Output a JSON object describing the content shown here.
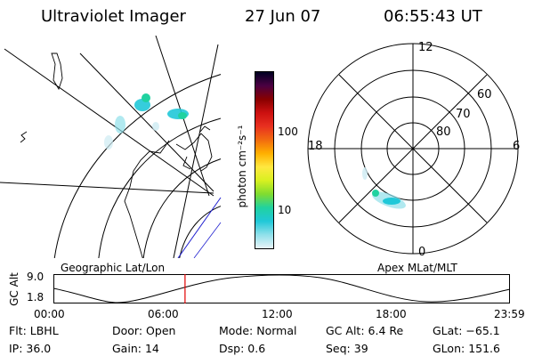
{
  "header": {
    "title": "Ultraviolet Imager",
    "date": "27 Jun 07",
    "time": "06:55:43 UT"
  },
  "colorbar": {
    "unit_label": "photon cm⁻²s⁻¹",
    "ticks": [
      "100",
      "10"
    ],
    "colors": [
      "#000022",
      "#4a0042",
      "#880000",
      "#cc1010",
      "#e83020",
      "#f26b10",
      "#ffb000",
      "#ffe840",
      "#d8f020",
      "#80dc30",
      "#20d2a0",
      "#20c8d8",
      "#90e0ea",
      "#e8f4f8"
    ]
  },
  "polar": {
    "mlt_labels": {
      "top": "12",
      "left": "18",
      "right": "6",
      "bottom": "0"
    },
    "lat_labels": [
      "60",
      "70",
      "80"
    ]
  },
  "timeline": {
    "left_title": "Geographic Lat/Lon",
    "right_title": "Apex MLat/MLT",
    "y_axis_label": "GC Alt",
    "y_ticks": [
      "9.0",
      "1.8"
    ],
    "x_ticks": [
      "00:00",
      "06:00",
      "12:00",
      "18:00",
      "23:59"
    ],
    "marker_time": "06:55:43"
  },
  "info": {
    "row1": [
      {
        "label": "Flt:",
        "value": "LBHL"
      },
      {
        "label": "Door:",
        "value": "Open"
      },
      {
        "label": "Mode:",
        "value": "Normal"
      },
      {
        "label": "GC Alt:",
        "value": "6.4 Re"
      },
      {
        "label": "GLat:",
        "value": "−65.1"
      }
    ],
    "row2": [
      {
        "label": "IP:",
        "value": "36.0"
      },
      {
        "label": "Gain:",
        "value": "14"
      },
      {
        "label": "Dsp:",
        "value": "0.6"
      },
      {
        "label": "Seq:",
        "value": "39"
      },
      {
        "label": "GLon:",
        "value": "151.6"
      }
    ]
  }
}
